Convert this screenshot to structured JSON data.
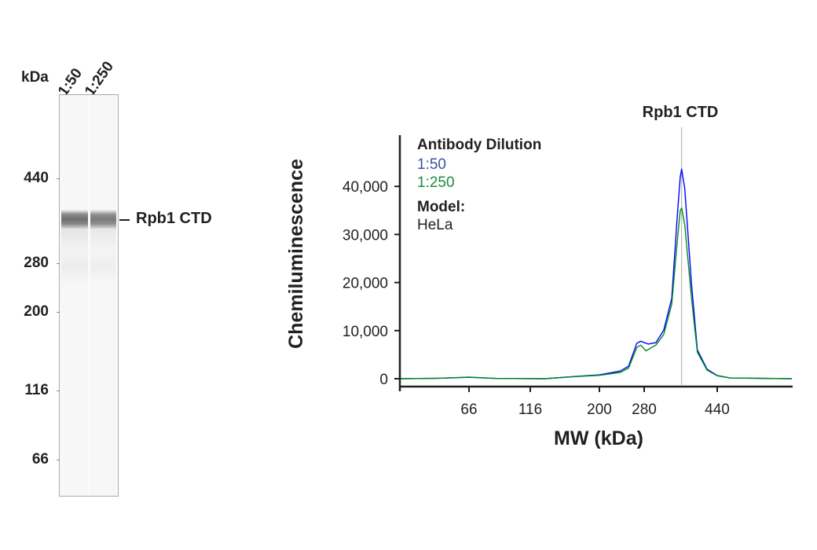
{
  "blot": {
    "unit_label": "kDa",
    "lanes": [
      "1:50",
      "1:250"
    ],
    "markers": [
      "440",
      "280",
      "200",
      "116",
      "66"
    ],
    "band_label": "Rpb1 CTD"
  },
  "chart_data": {
    "type": "line",
    "title": "Rpb1 CTD",
    "xlabel": "MW (kDa)",
    "ylabel": "Chemiluminescence",
    "x_ticks": [
      66,
      116,
      200,
      280,
      440
    ],
    "x_tick_labels": [
      "66",
      "116",
      "200",
      "280",
      "440"
    ],
    "xlim": [
      35,
      700
    ],
    "y_ticks": [
      0,
      10000,
      20000,
      30000,
      40000
    ],
    "y_tick_labels": [
      "0",
      "10,000",
      "20,000",
      "30,000",
      "40,000"
    ],
    "ylim": [
      0,
      50000
    ],
    "grid": false,
    "marker_line_mw": 353,
    "legend": {
      "title": "Antibody Dilution",
      "position": "top-left",
      "model_label": "Model:",
      "model_value": "HeLa"
    },
    "series": [
      {
        "name": "1:50",
        "color": "#0000ff",
        "legend_color": "#3a53a4",
        "points": [
          [
            35,
            0
          ],
          [
            50,
            100
          ],
          [
            66,
            300
          ],
          [
            85,
            50
          ],
          [
            130,
            0
          ],
          [
            168,
            500
          ],
          [
            200,
            800
          ],
          [
            234,
            1600
          ],
          [
            249,
            2600
          ],
          [
            265,
            7400
          ],
          [
            273,
            7800
          ],
          [
            287,
            7200
          ],
          [
            301,
            7500
          ],
          [
            316,
            10100
          ],
          [
            332,
            16700
          ],
          [
            343,
            33000
          ],
          [
            350,
            42000
          ],
          [
            353,
            43600
          ],
          [
            360,
            39500
          ],
          [
            375,
            20000
          ],
          [
            389,
            6000
          ],
          [
            413,
            2000
          ],
          [
            440,
            650
          ],
          [
            477,
            150
          ],
          [
            700,
            0
          ]
        ]
      },
      {
        "name": "1:250",
        "color": "#008a1c",
        "legend_color": "#1e8a3c",
        "points": [
          [
            35,
            0
          ],
          [
            50,
            100
          ],
          [
            66,
            350
          ],
          [
            85,
            50
          ],
          [
            130,
            0
          ],
          [
            168,
            450
          ],
          [
            200,
            700
          ],
          [
            234,
            1300
          ],
          [
            249,
            2200
          ],
          [
            265,
            6500
          ],
          [
            273,
            7000
          ],
          [
            283,
            5800
          ],
          [
            301,
            7000
          ],
          [
            316,
            9200
          ],
          [
            332,
            15500
          ],
          [
            343,
            28000
          ],
          [
            350,
            35000
          ],
          [
            353,
            35500
          ],
          [
            360,
            32000
          ],
          [
            375,
            17000
          ],
          [
            389,
            5500
          ],
          [
            413,
            1800
          ],
          [
            440,
            600
          ],
          [
            477,
            150
          ],
          [
            700,
            0
          ]
        ]
      }
    ]
  }
}
